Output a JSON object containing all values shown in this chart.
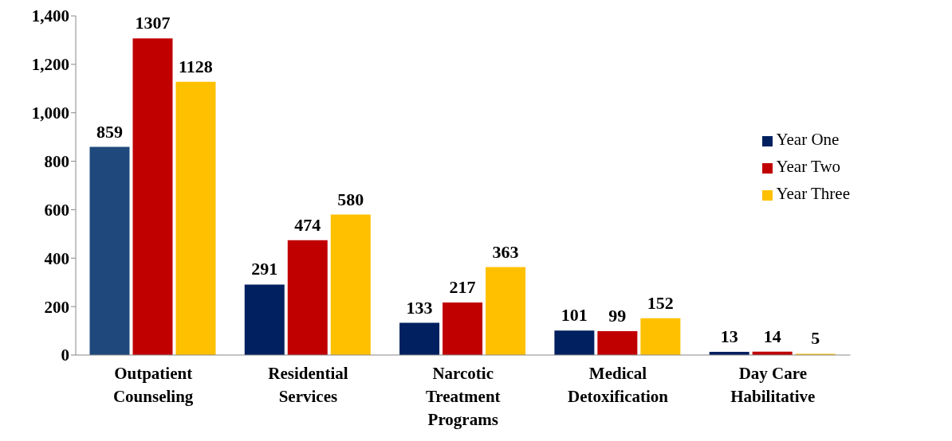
{
  "chart_data": {
    "type": "bar",
    "categories": [
      "Outpatient Counseling",
      "Residential Services",
      "Narcotic Treatment Programs",
      "Medical Detoxification",
      "Day Care Habilitative"
    ],
    "series": [
      {
        "name": "Year One",
        "color": "#002060",
        "colors": [
          "#1f497d",
          "#002060",
          "#002060",
          "#002060",
          "#002060"
        ],
        "values": [
          859,
          291,
          133,
          101,
          13
        ]
      },
      {
        "name": "Year Two",
        "color": "#c00000",
        "values": [
          1307,
          474,
          217,
          99,
          14
        ]
      },
      {
        "name": "Year Three",
        "color": "#ffc000",
        "values": [
          1128,
          580,
          363,
          152,
          5
        ]
      }
    ],
    "ylim": [
      0,
      1400
    ],
    "yticks": [
      0,
      200,
      400,
      600,
      800,
      {
        "value": 1000,
        "label": "1,000"
      },
      {
        "value": 1200,
        "label": "1,200"
      },
      {
        "value": 1400,
        "label": "1,400"
      }
    ],
    "data_labels": true,
    "grid": false,
    "legend": "right"
  }
}
